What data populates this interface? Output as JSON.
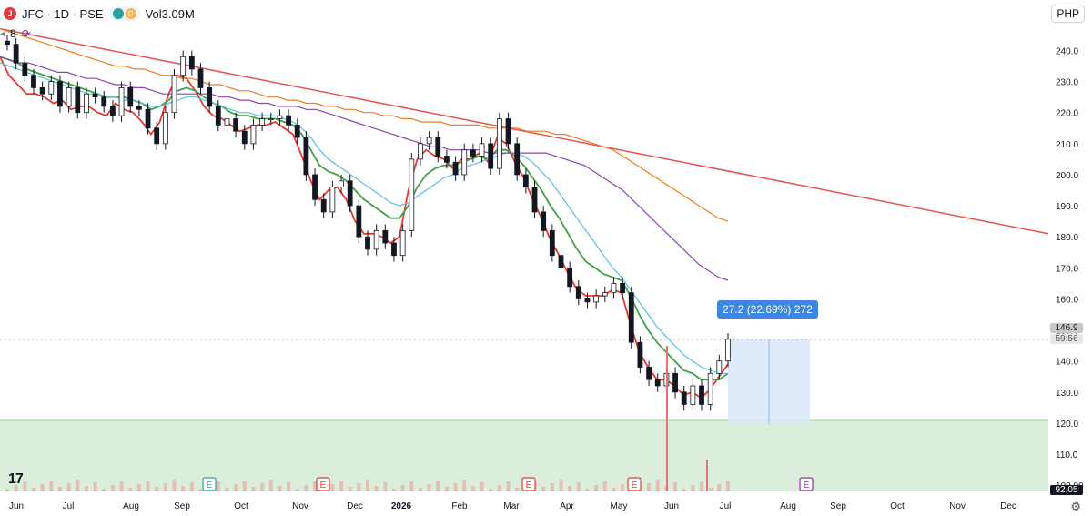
{
  "header": {
    "logo_letter": "J",
    "symbol": "JFC · 1D · PSE",
    "status_dots": [
      "",
      "D"
    ],
    "volume_label": "Vol",
    "volume_value": "3.09M"
  },
  "indicators": {
    "count": "8"
  },
  "currency": "PHP",
  "tv_logo": "17",
  "measure": {
    "label": "27.2 (22.69%) 272",
    "from": 119.8,
    "to": 147.0
  },
  "current_price": {
    "price": "146.9",
    "countdown": "59:56",
    "value": 146.9
  },
  "bottom_scale_label": "92.05",
  "colors": {
    "up": "#131722",
    "down": "#131722",
    "ema_red": "#e53935",
    "ema_green": "#43a047",
    "ma_teal": "#5bc0de",
    "ma_purple": "#8e44ad",
    "ma_orange": "#e67e22",
    "trendline": "#e55353",
    "zone": "#cfe8cf",
    "measure_fill": "#dbe9fb"
  },
  "chart_data": {
    "type": "line",
    "title": "",
    "xlabel": "",
    "ylabel": "",
    "ylim": [
      98,
      246
    ],
    "y_ticks": [
      "240.0",
      "230.0",
      "220.0",
      "210.0",
      "200.0",
      "190.0",
      "180.0",
      "170.0",
      "160.0",
      "150.0",
      "140.0",
      "130.0",
      "120.0",
      "110.0",
      "100.00"
    ],
    "x_ticks": [
      "Jun",
      "Jul",
      "Aug",
      "Sep",
      "Oct",
      "Nov",
      "Dec",
      "2026",
      "Feb",
      "Mar",
      "Apr",
      "May",
      "Jun",
      "Jul",
      "Aug",
      "Sep",
      "Oct",
      "Nov",
      "Dec"
    ],
    "earnings_markers": [
      {
        "month": "Sep",
        "label": "E",
        "color": "#26a69a"
      },
      {
        "month": "Dec",
        "label": "E",
        "color": "#e53935"
      },
      {
        "month": "Mar",
        "label": "E",
        "color": "#e53935"
      },
      {
        "month": "May",
        "label": "E",
        "color": "#e53935"
      },
      {
        "month": "Aug",
        "label": "E",
        "color": "#9c27b0"
      }
    ],
    "support_zone": [
      98,
      121
    ],
    "trendline": {
      "start": [
        0,
        247
      ],
      "end": [
        1,
        181
      ]
    },
    "series": [
      {
        "kind": "price",
        "values": [
          242,
          236,
          232,
          228,
          226,
          230,
          222,
          228,
          220,
          226,
          225,
          222,
          219,
          228,
          222,
          221,
          215,
          210,
          220,
          232,
          238,
          234,
          228,
          222,
          216,
          218,
          214,
          210,
          216,
          218,
          218,
          219,
          216,
          212,
          200,
          192,
          188,
          196,
          198,
          190,
          180,
          176,
          182,
          178,
          174,
          182,
          205,
          210,
          212,
          206,
          204,
          200,
          208,
          206,
          210,
          202,
          218,
          210,
          200,
          196,
          188,
          182,
          174,
          170,
          164,
          160,
          159,
          161,
          162,
          165,
          162,
          146,
          138,
          134,
          132,
          136,
          130,
          126,
          132,
          126,
          136,
          140,
          147
        ]
      },
      {
        "kind": "ema_red",
        "values": [
          238,
          232,
          229,
          226,
          226,
          225,
          223,
          224,
          221,
          222,
          222,
          220,
          219,
          223,
          221,
          220,
          217,
          213,
          217,
          226,
          232,
          231,
          227,
          222,
          219,
          218,
          216,
          214,
          215,
          216,
          216,
          217,
          215,
          213,
          206,
          198,
          192,
          195,
          196,
          192,
          185,
          181,
          181,
          180,
          178,
          180,
          195,
          205,
          208,
          206,
          205,
          202,
          205,
          205,
          207,
          204,
          212,
          210,
          204,
          199,
          192,
          186,
          179,
          174,
          168,
          163,
          161,
          161,
          161,
          163,
          162,
          152,
          143,
          138,
          134,
          134,
          132,
          129,
          130,
          128,
          131,
          135,
          139
        ]
      },
      {
        "kind": "ema_green",
        "values": [
          238,
          237,
          236,
          234,
          233,
          232,
          231,
          230,
          229,
          228,
          227,
          226,
          225,
          225,
          225,
          224,
          223,
          221,
          222,
          224,
          227,
          228,
          227,
          225,
          223,
          222,
          220,
          219,
          219,
          218,
          218,
          218,
          217,
          216,
          213,
          208,
          203,
          201,
          200,
          198,
          195,
          192,
          190,
          188,
          186,
          186,
          190,
          196,
          200,
          202,
          203,
          203,
          204,
          205,
          206,
          205,
          208,
          208,
          206,
          203,
          199,
          195,
          190,
          186,
          181,
          176,
          172,
          170,
          168,
          167,
          166,
          161,
          155,
          150,
          146,
          143,
          140,
          137,
          136,
          134,
          134,
          134,
          136
        ]
      },
      {
        "kind": "ma_teal",
        "values": [
          236,
          235,
          234,
          233,
          232,
          231,
          230,
          229,
          228,
          227,
          226,
          226,
          225,
          225,
          224,
          224,
          223,
          222,
          222,
          223,
          224,
          225,
          225,
          224,
          223,
          222,
          221,
          220,
          220,
          219,
          219,
          219,
          218,
          217,
          215,
          212,
          208,
          205,
          203,
          201,
          199,
          197,
          195,
          193,
          191,
          190,
          191,
          193,
          195,
          197,
          199,
          200,
          202,
          203,
          204,
          205,
          206,
          207,
          207,
          206,
          204,
          201,
          198,
          194,
          190,
          186,
          182,
          178,
          174,
          170,
          167,
          163,
          159,
          155,
          151,
          148,
          145,
          142,
          140,
          138,
          137,
          136,
          136
        ]
      },
      {
        "kind": "ma_purple",
        "values": [
          238,
          237,
          236,
          236,
          235,
          234,
          233,
          233,
          232,
          231,
          231,
          230,
          229,
          229,
          228,
          228,
          227,
          226,
          226,
          226,
          226,
          226,
          226,
          225,
          225,
          224,
          224,
          223,
          223,
          222,
          222,
          222,
          221,
          221,
          220,
          219,
          218,
          217,
          216,
          215,
          214,
          213,
          212,
          211,
          210,
          209,
          209,
          208,
          208,
          208,
          208,
          207,
          207,
          207,
          207,
          207,
          207,
          207,
          206,
          205,
          204,
          203,
          201,
          199,
          197,
          195,
          192,
          189,
          186,
          183,
          180,
          177,
          174,
          171,
          169,
          167,
          166
        ]
      },
      {
        "kind": "ma_orange",
        "values": [
          247,
          246,
          245,
          244,
          243,
          242,
          241,
          240,
          239,
          238,
          237,
          236,
          235,
          235,
          234,
          234,
          233,
          232,
          232,
          231,
          231,
          230,
          229,
          229,
          228,
          227,
          227,
          226,
          225,
          225,
          224,
          224,
          223,
          223,
          222,
          222,
          221,
          221,
          220,
          220,
          219,
          219,
          218,
          218,
          217,
          217,
          217,
          216,
          216,
          216,
          216,
          215,
          215,
          215,
          215,
          214,
          214,
          214,
          213,
          213,
          212,
          211,
          210,
          209,
          208,
          206,
          204,
          202,
          200,
          198,
          196,
          194,
          192,
          190,
          188,
          186,
          185
        ]
      }
    ]
  }
}
